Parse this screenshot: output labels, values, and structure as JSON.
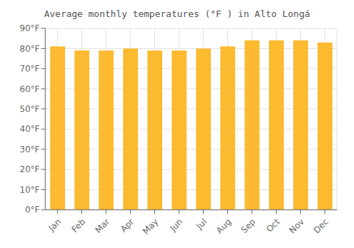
{
  "chart_data": {
    "type": "bar",
    "title": "Average monthly temperatures (°F ) in Alto Longá",
    "categories": [
      "Jan",
      "Feb",
      "Mar",
      "Apr",
      "May",
      "Jun",
      "Jul",
      "Aug",
      "Sep",
      "Oct",
      "Nov",
      "Dec"
    ],
    "values": [
      81,
      79,
      79,
      80,
      79,
      79,
      80,
      81,
      84,
      84,
      84,
      83
    ],
    "color": "#FBBA2F",
    "ylim": [
      0,
      90
    ],
    "yticks": [
      {
        "value": 0,
        "label": "0°F"
      },
      {
        "value": 10,
        "label": "10°F"
      },
      {
        "value": 20,
        "label": "20°F"
      },
      {
        "value": 30,
        "label": "30°F"
      },
      {
        "value": 40,
        "label": "40°F"
      },
      {
        "value": 50,
        "label": "50°F"
      },
      {
        "value": 60,
        "label": "60°F"
      },
      {
        "value": 70,
        "label": "70°F"
      },
      {
        "value": 80,
        "label": "80°F"
      },
      {
        "value": 90,
        "label": "90°F"
      }
    ],
    "grid": true
  }
}
